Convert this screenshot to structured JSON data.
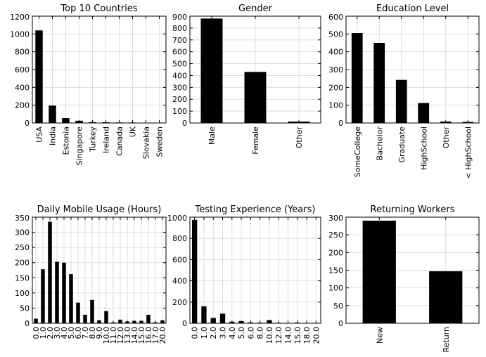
{
  "chart_data": [
    {
      "type": "bar",
      "title": "Top 10 Countries",
      "categories": [
        "USA",
        "India",
        "Estonia",
        "Singapore",
        "Turkey",
        "Ireland",
        "Canada",
        "UK",
        "Slovakia",
        "Sweden"
      ],
      "values": [
        1040,
        195,
        55,
        25,
        10,
        8,
        6,
        5,
        4,
        3
      ],
      "ylim": [
        0,
        1200
      ],
      "yticks": [
        0,
        200,
        400,
        600,
        800,
        1000,
        1200
      ],
      "grid": true
    },
    {
      "type": "bar",
      "title": "Gender",
      "categories": [
        "Male",
        "Female",
        "Other"
      ],
      "values": [
        880,
        430,
        12
      ],
      "ylim": [
        0,
        900
      ],
      "yticks": [
        0,
        100,
        200,
        300,
        400,
        500,
        600,
        700,
        800,
        900
      ],
      "grid": true
    },
    {
      "type": "bar",
      "title": "Education Level",
      "categories": [
        "SomeCollege",
        "Bachelor",
        "Graduate",
        "HighSchool",
        "Other",
        "< HighSchool"
      ],
      "values": [
        505,
        450,
        242,
        112,
        8,
        6
      ],
      "ylim": [
        0,
        600
      ],
      "yticks": [
        0,
        100,
        200,
        300,
        400,
        500,
        600
      ],
      "grid": true
    },
    {
      "type": "bar",
      "title": "Daily Mobile Usage (Hours)",
      "categories": [
        "0.0",
        "1.0",
        "2.0",
        "3.0",
        "4.0",
        "5.0",
        "6.0",
        "7.0",
        "8.0",
        "9.0",
        "10.0",
        "11.0",
        "12.0",
        "13.0",
        "14.0",
        "15.0",
        "16.0",
        "17.0",
        "20.0"
      ],
      "values": [
        15,
        178,
        335,
        203,
        200,
        162,
        68,
        28,
        77,
        10,
        40,
        3,
        12,
        6,
        8,
        8,
        28,
        3,
        10
      ],
      "ylim": [
        0,
        350
      ],
      "yticks": [
        0,
        50,
        100,
        150,
        200,
        250,
        300,
        350
      ],
      "grid": true
    },
    {
      "type": "bar",
      "title": "Testing Experience (Years)",
      "categories": [
        "0.0",
        "1.0",
        "2.0",
        "3.0",
        "4.0",
        "5.0",
        "6.0",
        "8.0",
        "10.0",
        "12.0",
        "14.0",
        "15.0",
        "18.0",
        "20.0"
      ],
      "values": [
        975,
        160,
        50,
        90,
        15,
        20,
        8,
        6,
        30,
        5,
        4,
        6,
        3,
        4
      ],
      "ylim": [
        0,
        1000
      ],
      "yticks": [
        0,
        200,
        400,
        600,
        800,
        1000
      ],
      "grid": true
    },
    {
      "type": "bar",
      "title": "Returning Workers",
      "categories": [
        "New",
        "Return"
      ],
      "values": [
        290,
        147
      ],
      "ylim": [
        0,
        300
      ],
      "yticks": [
        0,
        50,
        100,
        150,
        200,
        250,
        300
      ],
      "grid": true
    }
  ]
}
